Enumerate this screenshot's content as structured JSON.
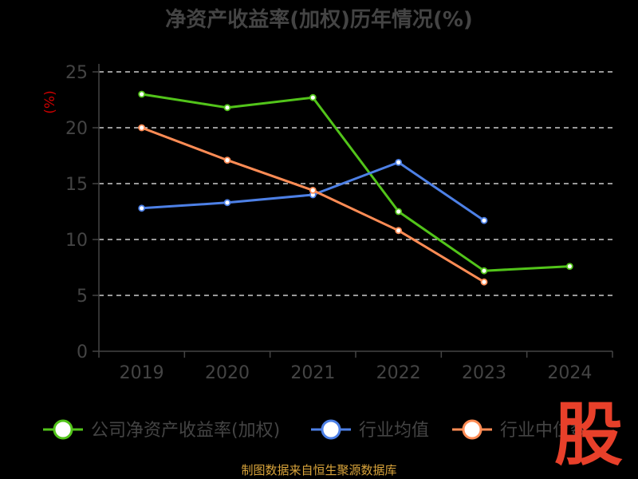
{
  "chart_data": {
    "type": "line",
    "title": "净资产收益率(加权)历年情况(%)",
    "ylabel": "(%)",
    "categories": [
      "2019",
      "2020",
      "2021",
      "2022",
      "2023",
      "2024"
    ],
    "ylim": [
      0,
      25
    ],
    "yticks": [
      0,
      5,
      10,
      15,
      20,
      25
    ],
    "grid": true,
    "legend_position": "bottom",
    "series": [
      {
        "name": "公司净资产收益率(加权)",
        "color": "#52c41a",
        "values": [
          23.0,
          21.8,
          22.7,
          12.5,
          7.2,
          7.6
        ]
      },
      {
        "name": "行业均值",
        "color": "#4d80e6",
        "values": [
          12.8,
          13.3,
          14.0,
          16.9,
          11.7,
          null
        ]
      },
      {
        "name": "行业中位数",
        "color": "#ff8c55",
        "values": [
          20.0,
          17.1,
          14.4,
          10.8,
          6.2,
          null
        ]
      }
    ]
  },
  "source": "制图数据来自恒生聚源数据库",
  "watermark": "股",
  "colors": {
    "axis": "#444444",
    "grid": "#cccccc",
    "tick_text": "#444444",
    "title": "#444444",
    "unit": "#cc0000",
    "source": "#d9a43b",
    "watermark": "#e8402a"
  }
}
